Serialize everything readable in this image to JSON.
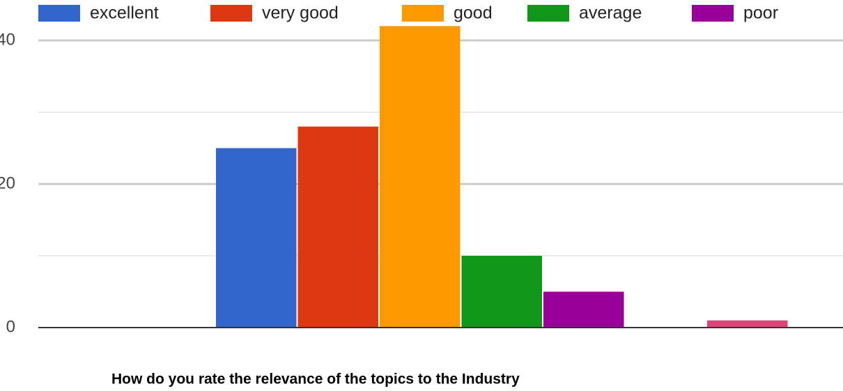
{
  "chart_data": {
    "type": "bar",
    "title": "How do you rate the relevance of the topics to the Industry",
    "series": [
      {
        "name": "excellent",
        "color": "#3366cc",
        "values": [
          25
        ]
      },
      {
        "name": "very good",
        "color": "#dc3912",
        "values": [
          28
        ]
      },
      {
        "name": "good",
        "color": "#ff9900",
        "values": [
          42
        ]
      },
      {
        "name": "average",
        "color": "#109618",
        "values": [
          10
        ]
      },
      {
        "name": "poor",
        "color": "#990099",
        "values": [
          5
        ]
      },
      {
        "name": null,
        "color": "#dd4477",
        "values": [
          1
        ]
      }
    ],
    "ylim": [
      0,
      42
    ],
    "yticks": [
      0,
      20,
      40
    ],
    "minor_yticks": [
      10,
      30
    ],
    "grid": true,
    "legend": "top"
  }
}
